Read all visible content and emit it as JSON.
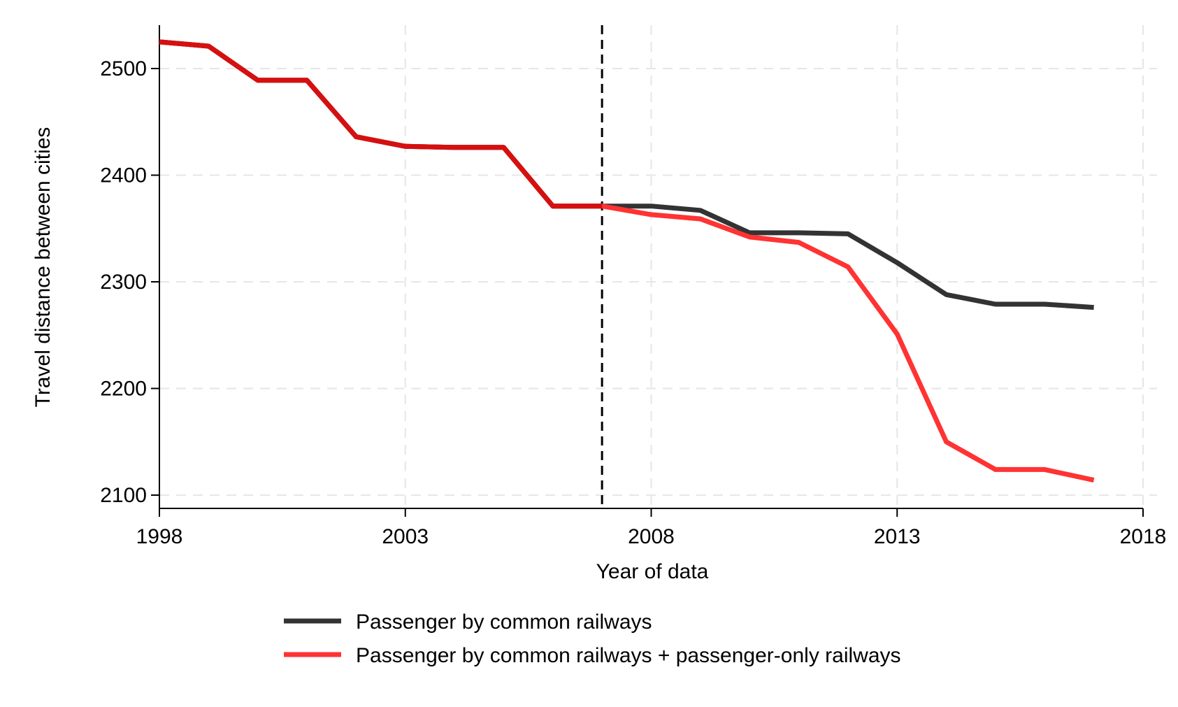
{
  "chart_data": {
    "type": "line",
    "xlabel": "Year of data",
    "ylabel": "Travel distance between cities",
    "xlim": [
      1998,
      2018
    ],
    "ylim": [
      2092,
      2540
    ],
    "x_ticks": [
      1998,
      2003,
      2008,
      2013,
      2018
    ],
    "y_ticks": [
      2100,
      2200,
      2300,
      2400,
      2500
    ],
    "grid": true,
    "grid_style": "dashed",
    "reference_line": {
      "axis": "x",
      "value": 2007,
      "style": "dashed",
      "color": "#000000"
    },
    "legend_position": "bottom",
    "x": [
      1998,
      1999,
      2000,
      2001,
      2002,
      2003,
      2004,
      2005,
      2006,
      2007,
      2008,
      2009,
      2010,
      2011,
      2012,
      2013,
      2014,
      2015,
      2016,
      2017
    ],
    "series": [
      {
        "name": "Passenger by common railways",
        "color": "#333333",
        "values": [
          2525,
          2521,
          2489,
          2489,
          2436,
          2427,
          2426,
          2426,
          2371,
          2371,
          2371,
          2367,
          2346,
          2346,
          2345,
          2318,
          2288,
          2279,
          2279,
          2276
        ]
      },
      {
        "name": "Passenger by common railways + passenger-only railways",
        "color": "#ff3333",
        "values": [
          2525,
          2521,
          2489,
          2489,
          2436,
          2427,
          2426,
          2426,
          2371,
          2371,
          2363,
          2359,
          2342,
          2337,
          2314,
          2251,
          2150,
          2124,
          2124,
          2114
        ]
      }
    ]
  }
}
